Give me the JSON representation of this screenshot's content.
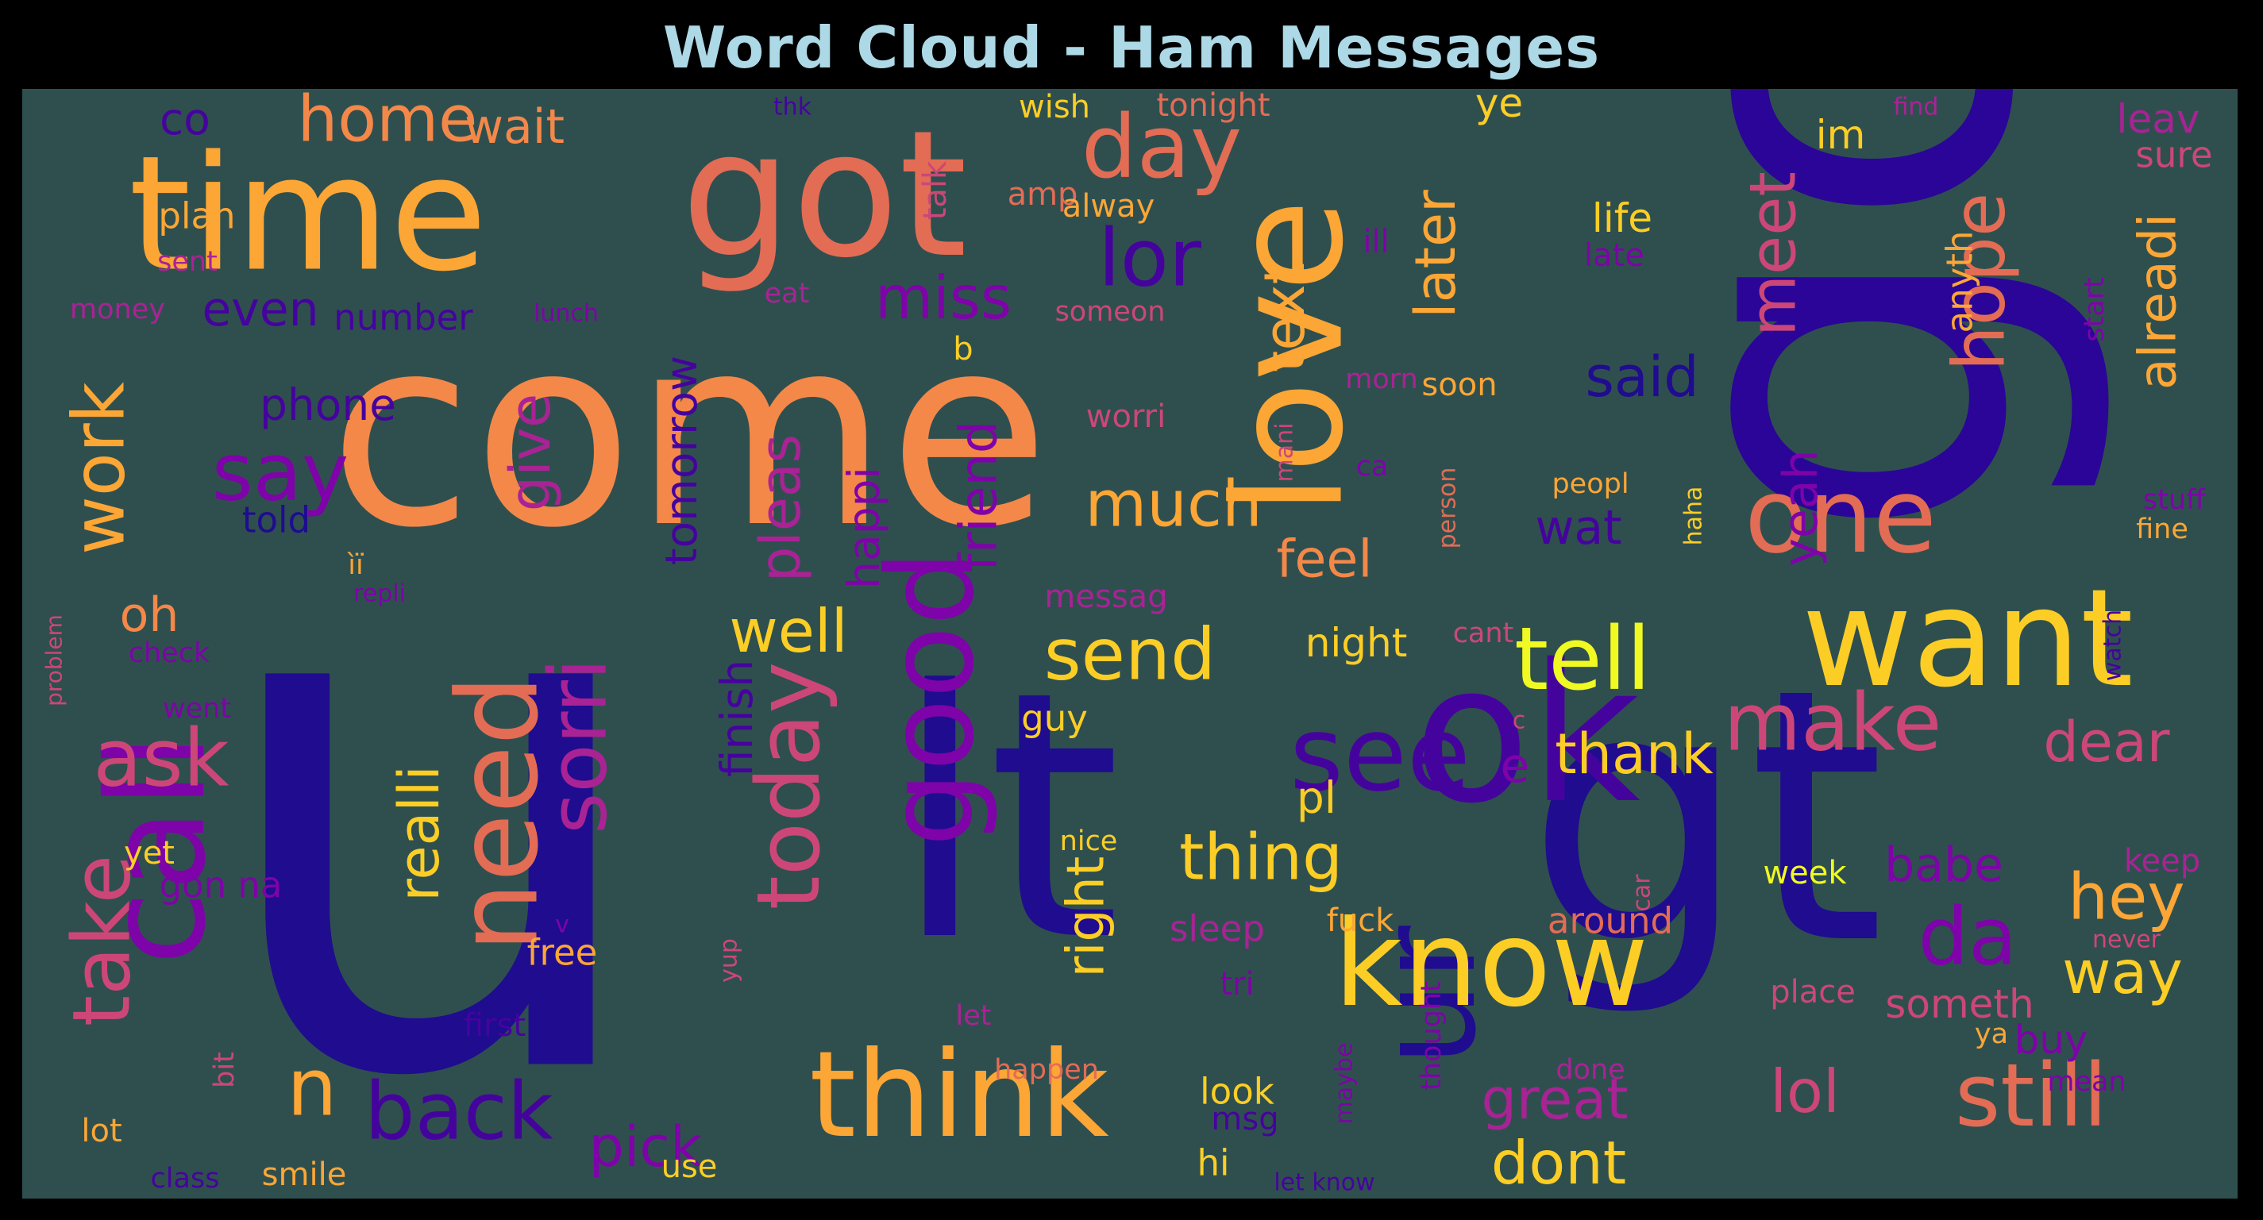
{
  "chart_data": {
    "type": "wordcloud",
    "title": "Word Cloud - Ham Messages",
    "colors": {
      "page_background": "#000000",
      "cloud_background": "#2f4f4f",
      "title": "#add8e6",
      "palette": [
        "#1f0c8f",
        "#45039e",
        "#7e03a8",
        "#a92395",
        "#cc4778",
        "#e36c55",
        "#f48849",
        "#fca636",
        "#fcce25",
        "#f0f921"
      ]
    },
    "words": [
      {
        "text": "u",
        "size": 900,
        "color": "#1f0c8f",
        "rotate": 0
      },
      {
        "text": "go",
        "size": 620,
        "color": "#2a0597",
        "rotate": -90
      },
      {
        "text": "come",
        "size": 330,
        "color": "#f48849",
        "rotate": 0
      },
      {
        "text": "gt",
        "size": 440,
        "color": "#1f0c8f",
        "rotate": 0
      },
      {
        "text": "lt",
        "size": 430,
        "color": "#1f0c8f",
        "rotate": 0
      },
      {
        "text": "got",
        "size": 220,
        "color": "#e36c55",
        "rotate": 0
      },
      {
        "text": "time",
        "size": 200,
        "color": "#fca636",
        "rotate": 0
      },
      {
        "text": "call",
        "size": 170,
        "color": "#7e03a8",
        "rotate": -90
      },
      {
        "text": "love",
        "size": 190,
        "color": "#fca636",
        "rotate": -90
      },
      {
        "text": "ok",
        "size": 240,
        "color": "#45039e",
        "rotate": 0
      },
      {
        "text": "want",
        "size": 170,
        "color": "#fcce25",
        "rotate": 0
      },
      {
        "text": "ur",
        "size": 170,
        "color": "#1f0c8f",
        "rotate": -90
      },
      {
        "text": "know",
        "size": 150,
        "color": "#fcce25",
        "rotate": 0
      },
      {
        "text": "think",
        "size": 150,
        "color": "#fca636",
        "rotate": 0
      },
      {
        "text": "good",
        "size": 150,
        "color": "#7e03a8",
        "rotate": -90
      },
      {
        "text": "need",
        "size": 140,
        "color": "#e36c55",
        "rotate": -90
      },
      {
        "text": "see",
        "size": 130,
        "color": "#45039e",
        "rotate": 0
      },
      {
        "text": "one",
        "size": 130,
        "color": "#e36c55",
        "rotate": 0
      },
      {
        "text": "day",
        "size": 110,
        "color": "#e36c55",
        "rotate": 0
      },
      {
        "text": "tell",
        "size": 110,
        "color": "#f0f921",
        "rotate": 0
      },
      {
        "text": "still",
        "size": 110,
        "color": "#e36c55",
        "rotate": 0
      },
      {
        "text": "make",
        "size": 100,
        "color": "#cc4778",
        "rotate": 0
      },
      {
        "text": "today",
        "size": 110,
        "color": "#cc4778",
        "rotate": -90
      },
      {
        "text": "back",
        "size": 100,
        "color": "#45039e",
        "rotate": 0
      },
      {
        "text": "ask",
        "size": 100,
        "color": "#cc4778",
        "rotate": 0
      },
      {
        "text": "lor",
        "size": 100,
        "color": "#45039e",
        "rotate": 0
      },
      {
        "text": "sorri",
        "size": 100,
        "color": "#a92395",
        "rotate": -90
      },
      {
        "text": "say",
        "size": 100,
        "color": "#7e03a8",
        "rotate": 0
      },
      {
        "text": "take",
        "size": 100,
        "color": "#cc4778",
        "rotate": -90
      },
      {
        "text": "work",
        "size": 90,
        "color": "#fca636",
        "rotate": -90
      },
      {
        "text": "da",
        "size": 100,
        "color": "#7e03a8",
        "rotate": 0
      },
      {
        "text": "send",
        "size": 90,
        "color": "#fcce25",
        "rotate": 0
      },
      {
        "text": "n",
        "size": 100,
        "color": "#fca636",
        "rotate": 0
      },
      {
        "text": "much",
        "size": 80,
        "color": "#fca636",
        "rotate": 0
      },
      {
        "text": "meet",
        "size": 80,
        "color": "#cc4778",
        "rotate": -90
      },
      {
        "text": "hope",
        "size": 90,
        "color": "#e36c55",
        "rotate": -90
      },
      {
        "text": "home",
        "size": 80,
        "color": "#f48849",
        "rotate": 0
      },
      {
        "text": "miss",
        "size": 75,
        "color": "#7e03a8",
        "rotate": 0
      },
      {
        "text": "thing",
        "size": 80,
        "color": "#fcce25",
        "rotate": 0
      },
      {
        "text": "well",
        "size": 75,
        "color": "#fcce25",
        "rotate": 0
      },
      {
        "text": "hey",
        "size": 80,
        "color": "#fca636",
        "rotate": 0
      },
      {
        "text": "dont",
        "size": 75,
        "color": "#fcce25",
        "rotate": 0
      },
      {
        "text": "way",
        "size": 75,
        "color": "#fcce25",
        "rotate": 0
      },
      {
        "text": "lol",
        "size": 75,
        "color": "#cc4778",
        "rotate": 0
      },
      {
        "text": "dear",
        "size": 70,
        "color": "#cc4778",
        "rotate": 0
      },
      {
        "text": "text",
        "size": 70,
        "color": "#fca636",
        "rotate": -90
      },
      {
        "text": "later",
        "size": 70,
        "color": "#fca636",
        "rotate": -90
      },
      {
        "text": "said",
        "size": 70,
        "color": "#1f0c8f",
        "rotate": 0
      },
      {
        "text": "realli",
        "size": 70,
        "color": "#fcce25",
        "rotate": -90
      },
      {
        "text": "give",
        "size": 70,
        "color": "#a92395",
        "rotate": -90
      },
      {
        "text": "pleas",
        "size": 70,
        "color": "#a92395",
        "rotate": -90
      },
      {
        "text": "friend",
        "size": 65,
        "color": "#7e03a8",
        "rotate": -90
      },
      {
        "text": "thank",
        "size": 70,
        "color": "#fcce25",
        "rotate": 0
      },
      {
        "text": "feel",
        "size": 65,
        "color": "#f48849",
        "rotate": 0
      },
      {
        "text": "alreadi",
        "size": 65,
        "color": "#fca636",
        "rotate": -90
      },
      {
        "text": "great",
        "size": 70,
        "color": "#a92395",
        "rotate": 0
      },
      {
        "text": "pick",
        "size": 70,
        "color": "#7e03a8",
        "rotate": 0
      },
      {
        "text": "right",
        "size": 65,
        "color": "#fcce25",
        "rotate": -90
      },
      {
        "text": "babe",
        "size": 60,
        "color": "#7e03a8",
        "rotate": 0
      },
      {
        "text": "even",
        "size": 60,
        "color": "#45039e",
        "rotate": 0
      },
      {
        "text": "oh",
        "size": 60,
        "color": "#f48849",
        "rotate": 0
      },
      {
        "text": "yeah",
        "size": 60,
        "color": "#7e03a8",
        "rotate": -90
      },
      {
        "text": "wat",
        "size": 60,
        "color": "#45039e",
        "rotate": 0
      },
      {
        "text": "wait",
        "size": 60,
        "color": "#f48849",
        "rotate": 0
      },
      {
        "text": "phone",
        "size": 55,
        "color": "#45039e",
        "rotate": 0
      },
      {
        "text": "tomorrow",
        "size": 55,
        "color": "#45039e",
        "rotate": -90
      },
      {
        "text": "co",
        "size": 55,
        "color": "#45039e",
        "rotate": 0
      },
      {
        "text": "happi",
        "size": 55,
        "color": "#7e03a8",
        "rotate": -90
      },
      {
        "text": "finish",
        "size": 55,
        "color": "#45039e",
        "rotate": -90
      },
      {
        "text": "e",
        "size": 60,
        "color": "#7e03a8",
        "rotate": 0
      },
      {
        "text": "pl",
        "size": 55,
        "color": "#fcce25",
        "rotate": 0
      },
      {
        "text": "anyth",
        "size": 45,
        "color": "#fca636",
        "rotate": -90
      },
      {
        "text": "im",
        "size": 50,
        "color": "#fcce25",
        "rotate": 0
      },
      {
        "text": "night",
        "size": 50,
        "color": "#fcce25",
        "rotate": 0
      },
      {
        "text": "ye",
        "size": 50,
        "color": "#fcce25",
        "rotate": 0
      },
      {
        "text": "life",
        "size": 50,
        "color": "#fcce25",
        "rotate": 0
      },
      {
        "text": "someth",
        "size": 50,
        "color": "#cc4778",
        "rotate": 0
      },
      {
        "text": "number",
        "size": 45,
        "color": "#45039e",
        "rotate": 0
      },
      {
        "text": "around",
        "size": 45,
        "color": "#e36c55",
        "rotate": 0
      },
      {
        "text": "buy",
        "size": 50,
        "color": "#7e03a8",
        "rotate": 0
      },
      {
        "text": "guy",
        "size": 45,
        "color": "#fcce25",
        "rotate": 0
      },
      {
        "text": "look",
        "size": 45,
        "color": "#fcce25",
        "rotate": 0
      },
      {
        "text": "gon na",
        "size": 45,
        "color": "#7e03a8",
        "rotate": 0
      },
      {
        "text": "plan",
        "size": 45,
        "color": "#fca636",
        "rotate": 0
      },
      {
        "text": "leav",
        "size": 50,
        "color": "#a92395",
        "rotate": 0
      },
      {
        "text": "told",
        "size": 45,
        "color": "#1f0c8f",
        "rotate": 0
      },
      {
        "text": "smile",
        "size": 40,
        "color": "#fca636",
        "rotate": 0
      },
      {
        "text": "free",
        "size": 45,
        "color": "#fca636",
        "rotate": 0
      },
      {
        "text": "sure",
        "size": 45,
        "color": "#cc4778",
        "rotate": 0
      },
      {
        "text": "keep",
        "size": 40,
        "color": "#a92395",
        "rotate": 0
      },
      {
        "text": "sleep",
        "size": 45,
        "color": "#a92395",
        "rotate": 0
      },
      {
        "text": "messag",
        "size": 40,
        "color": "#a92395",
        "rotate": 0
      },
      {
        "text": "week",
        "size": 40,
        "color": "#f0f921",
        "rotate": 0
      },
      {
        "text": "place",
        "size": 40,
        "color": "#cc4778",
        "rotate": 0
      },
      {
        "text": "hi",
        "size": 45,
        "color": "#fcce25",
        "rotate": 0
      },
      {
        "text": "use",
        "size": 40,
        "color": "#fcce25",
        "rotate": 0
      },
      {
        "text": "tri",
        "size": 40,
        "color": "#7e03a8",
        "rotate": 0
      },
      {
        "text": "msg",
        "size": 40,
        "color": "#45039e",
        "rotate": 0
      },
      {
        "text": "talk",
        "size": 40,
        "color": "#cc4778",
        "rotate": -90
      },
      {
        "text": "amp",
        "size": 40,
        "color": "#e36c55",
        "rotate": 0
      },
      {
        "text": "alway",
        "size": 40,
        "color": "#fca636",
        "rotate": 0
      },
      {
        "text": "wish",
        "size": 40,
        "color": "#fcce25",
        "rotate": 0
      },
      {
        "text": "tonight",
        "size": 40,
        "color": "#e36c55",
        "rotate": 0
      },
      {
        "text": "worri",
        "size": 40,
        "color": "#cc4778",
        "rotate": 0
      },
      {
        "text": "b",
        "size": 40,
        "color": "#fcce25",
        "rotate": 0
      },
      {
        "text": "someon",
        "size": 35,
        "color": "#cc4778",
        "rotate": 0
      },
      {
        "text": "start",
        "size": 35,
        "color": "#7e03a8",
        "rotate": -90
      },
      {
        "text": "fine",
        "size": 35,
        "color": "#fca636",
        "rotate": 0
      },
      {
        "text": "first",
        "size": 40,
        "color": "#45039e",
        "rotate": 0
      },
      {
        "text": "soon",
        "size": 40,
        "color": "#fca636",
        "rotate": 0
      },
      {
        "text": "yet",
        "size": 40,
        "color": "#fcce25",
        "rotate": 0
      },
      {
        "text": "lot",
        "size": 40,
        "color": "#fca636",
        "rotate": 0
      },
      {
        "text": "ya",
        "size": 35,
        "color": "#fca636",
        "rotate": 0
      },
      {
        "text": "happen",
        "size": 35,
        "color": "#e36c55",
        "rotate": 0
      },
      {
        "text": "thought",
        "size": 35,
        "color": "#7e03a8",
        "rotate": -90
      },
      {
        "text": "nice",
        "size": 35,
        "color": "#fcce25",
        "rotate": 0
      },
      {
        "text": "fuck",
        "size": 40,
        "color": "#fca636",
        "rotate": 0
      },
      {
        "text": "eat",
        "size": 35,
        "color": "#a92395",
        "rotate": 0
      },
      {
        "text": "sent",
        "size": 35,
        "color": "#a92395",
        "rotate": 0
      },
      {
        "text": "money",
        "size": 35,
        "color": "#a92395",
        "rotate": 0
      },
      {
        "text": "lunch",
        "size": 30,
        "color": "#7e03a8",
        "rotate": 0
      },
      {
        "text": "thk",
        "size": 30,
        "color": "#45039e",
        "rotate": 0
      },
      {
        "text": "find",
        "size": 30,
        "color": "#a92395",
        "rotate": 0
      },
      {
        "text": "late",
        "size": 40,
        "color": "#7e03a8",
        "rotate": 0
      },
      {
        "text": "ill",
        "size": 40,
        "color": "#7e03a8",
        "rotate": 0
      },
      {
        "text": "morn",
        "size": 35,
        "color": "#a92395",
        "rotate": 0
      },
      {
        "text": "ca",
        "size": 35,
        "color": "#7e03a8",
        "rotate": 0
      },
      {
        "text": "mani",
        "size": 30,
        "color": "#cc4778",
        "rotate": -90
      },
      {
        "text": "person",
        "size": 30,
        "color": "#e36c55",
        "rotate": -90
      },
      {
        "text": "peopl",
        "size": 35,
        "color": "#fca636",
        "rotate": 0
      },
      {
        "text": "haha",
        "size": 30,
        "color": "#fcce25",
        "rotate": -90
      },
      {
        "text": "cant",
        "size": 35,
        "color": "#cc4778",
        "rotate": 0
      },
      {
        "text": "c",
        "size": 30,
        "color": "#cc4778",
        "rotate": 0
      },
      {
        "text": "stuff",
        "size": 35,
        "color": "#7e03a8",
        "rotate": 0
      },
      {
        "text": "ìï",
        "size": 35,
        "color": "#fca636",
        "rotate": 0
      },
      {
        "text": "repli",
        "size": 30,
        "color": "#7e03a8",
        "rotate": 0
      },
      {
        "text": "check",
        "size": 35,
        "color": "#7e03a8",
        "rotate": 0
      },
      {
        "text": "went",
        "size": 35,
        "color": "#7e03a8",
        "rotate": 0
      },
      {
        "text": "problem",
        "size": 28,
        "color": "#cc4778",
        "rotate": -90
      },
      {
        "text": "watch",
        "size": 30,
        "color": "#45039e",
        "rotate": -90
      },
      {
        "text": "car",
        "size": 30,
        "color": "#cc4778",
        "rotate": -90
      },
      {
        "text": "never",
        "size": 30,
        "color": "#cc4778",
        "rotate": 0
      },
      {
        "text": "let",
        "size": 35,
        "color": "#a92395",
        "rotate": 0
      },
      {
        "text": "yup",
        "size": 30,
        "color": "#cc4778",
        "rotate": -90
      },
      {
        "text": "v",
        "size": 30,
        "color": "#7e03a8",
        "rotate": 0
      },
      {
        "text": "done",
        "size": 35,
        "color": "#a92395",
        "rotate": 0
      },
      {
        "text": "mean",
        "size": 35,
        "color": "#7e03a8",
        "rotate": 0
      },
      {
        "text": "maybe",
        "size": 30,
        "color": "#7e03a8",
        "rotate": -90
      },
      {
        "text": "bit",
        "size": 35,
        "color": "#cc4778",
        "rotate": -90
      },
      {
        "text": "class",
        "size": 35,
        "color": "#45039e",
        "rotate": 0
      },
      {
        "text": "let know",
        "size": 30,
        "color": "#45039e",
        "rotate": 0
      }
    ]
  }
}
